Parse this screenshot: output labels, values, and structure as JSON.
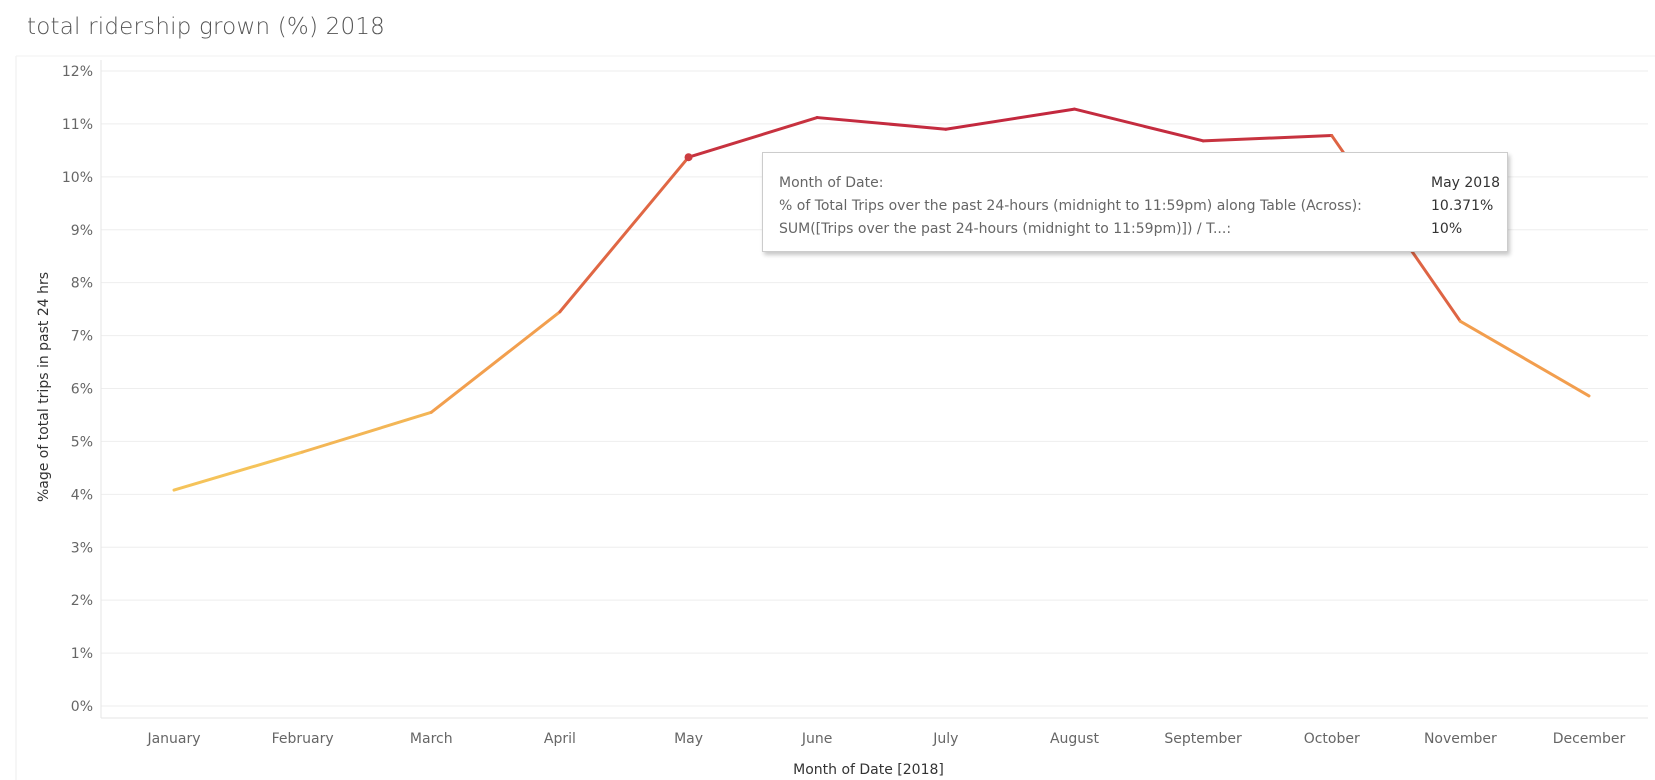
{
  "title": "total ridership grown (%) 2018",
  "chart_data": {
    "type": "line",
    "title": "total ridership grown (%) 2018",
    "xlabel": "Month of Date [2018]",
    "ylabel": "%age of total trips in past 24 hrs",
    "categories": [
      "January",
      "February",
      "March",
      "April",
      "May",
      "June",
      "July",
      "August",
      "September",
      "October",
      "November",
      "December"
    ],
    "series": [
      {
        "values": [
          4.08,
          4.8,
          5.55,
          7.45,
          10.371,
          11.12,
          10.9,
          11.28,
          10.68,
          10.78,
          7.27,
          5.86
        ]
      }
    ],
    "ylim": [
      0,
      12
    ],
    "yticks": [
      0,
      1,
      2,
      3,
      4,
      5,
      6,
      7,
      8,
      9,
      10,
      11,
      12
    ],
    "ytick_labels": [
      "0%",
      "1%",
      "2%",
      "3%",
      "4%",
      "5%",
      "6%",
      "7%",
      "8%",
      "9%",
      "10%",
      "11%",
      "12%"
    ],
    "grid": true,
    "legend": "none",
    "highlighted_point": "May",
    "color_scale": {
      "low_color": "#f5c95c",
      "mid_color": "#f08a47",
      "high_color": "#c0233e"
    }
  },
  "tooltip": {
    "rows": [
      {
        "label": "Month of Date:",
        "value": "May 2018"
      },
      {
        "label": "% of Total Trips over the past 24-hours (midnight to 11:59pm) along Table (Across):",
        "value": "10.371%"
      },
      {
        "label": "SUM([Trips over the past 24-hours (midnight to 11:59pm)]) / T...:",
        "value": "10%"
      }
    ]
  }
}
